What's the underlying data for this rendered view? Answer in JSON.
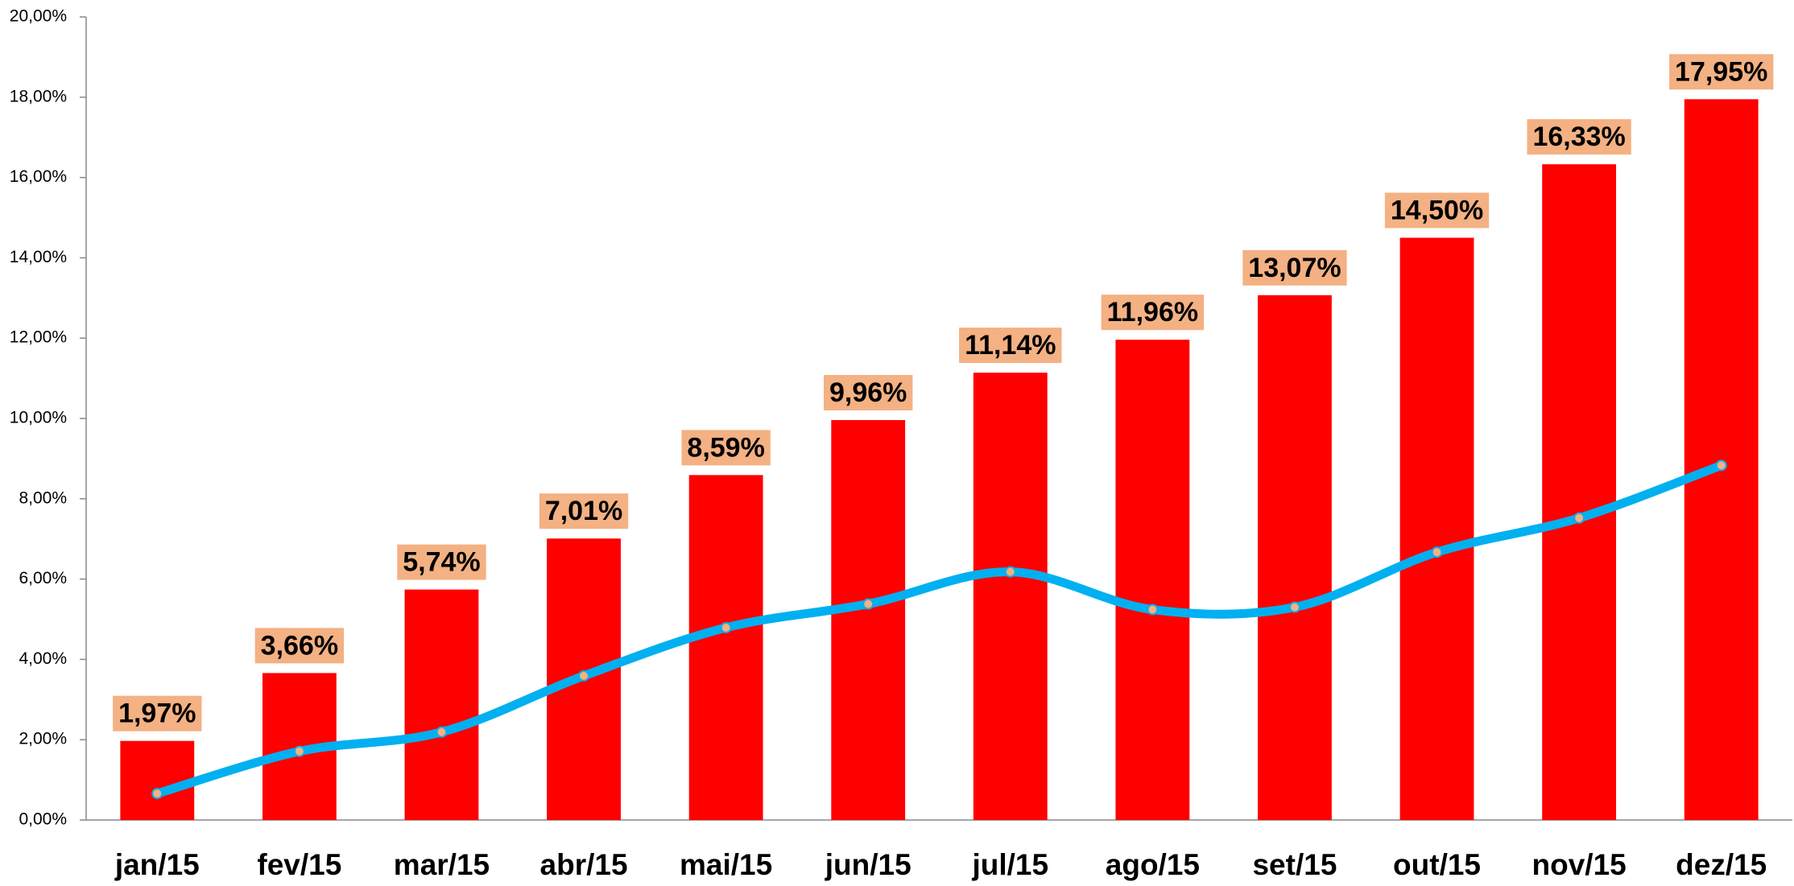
{
  "chart_data": {
    "type": "bar",
    "categories": [
      "jan/15",
      "fev/15",
      "mar/15",
      "abr/15",
      "mai/15",
      "jun/15",
      "jul/15",
      "ago/15",
      "set/15",
      "out/15",
      "nov/15",
      "dez/15"
    ],
    "series": [
      {
        "type": "bar",
        "color": "#ff0000",
        "values": [
          1.97,
          3.66,
          5.74,
          7.01,
          8.59,
          9.96,
          11.14,
          11.96,
          13.07,
          14.5,
          16.33,
          17.95
        ],
        "value_labels": [
          "1,97%",
          "3,66%",
          "5,74%",
          "7,01%",
          "8,59%",
          "9,96%",
          "11,14%",
          "11,96%",
          "13,07%",
          "14,50%",
          "16,33%",
          "17,95%"
        ]
      },
      {
        "type": "line",
        "color": "#00b0f0",
        "marker_color": "#f4b183",
        "values": [
          0.66,
          1.71,
          2.19,
          3.59,
          4.79,
          5.38,
          6.18,
          5.24,
          5.3,
          6.67,
          7.52,
          8.83
        ]
      }
    ],
    "ylim": [
      0,
      20
    ],
    "yticks": [
      {
        "value": 0,
        "label": "0,00%"
      },
      {
        "value": 2,
        "label": "2,00%"
      },
      {
        "value": 4,
        "label": "4,00%"
      },
      {
        "value": 6,
        "label": "6,00%"
      },
      {
        "value": 8,
        "label": "8,00%"
      },
      {
        "value": 10,
        "label": "10,00%"
      },
      {
        "value": 12,
        "label": "12,00%"
      },
      {
        "value": 14,
        "label": "14,00%"
      },
      {
        "value": 16,
        "label": "16,00%"
      },
      {
        "value": 18,
        "label": "18,00%"
      },
      {
        "value": 20,
        "label": "20,00%"
      }
    ],
    "grid": false
  }
}
